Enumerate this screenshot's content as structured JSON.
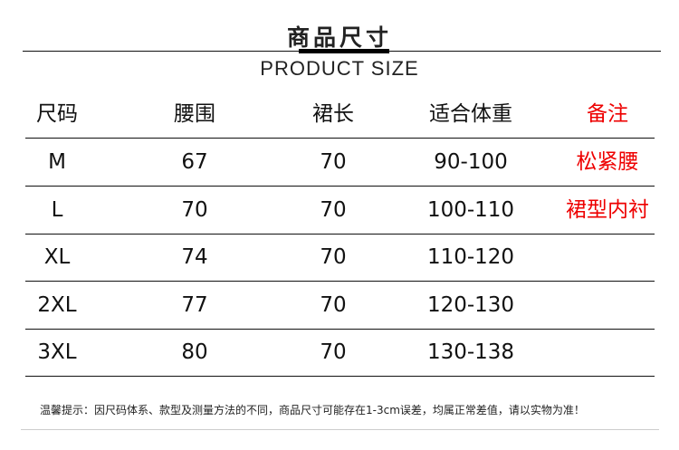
{
  "title": "商品尺寸",
  "subtitle": "PRODUCT SIZE",
  "headers": [
    "尺码",
    "腰围",
    "裙长",
    "适合体重",
    "备注"
  ],
  "rows": [
    [
      "M",
      "67",
      "70",
      "90-100",
      "松紧腰"
    ],
    [
      "L",
      "70",
      "70",
      "100-110",
      "裙型内衬"
    ],
    [
      "XL",
      "74",
      "70",
      "110-120",
      ""
    ],
    [
      "2XL",
      "77",
      "70",
      "120-130",
      ""
    ],
    [
      "3XL",
      "80",
      "70",
      "130-138",
      ""
    ]
  ],
  "note": "温馨提示：因尺码体系、款型及测量方法的不同，商品尺寸可能存在1-3cm误差，均属正常差值，请以实物为准！",
  "colors": {
    "accent": "#e00000",
    "text": "#111111"
  }
}
